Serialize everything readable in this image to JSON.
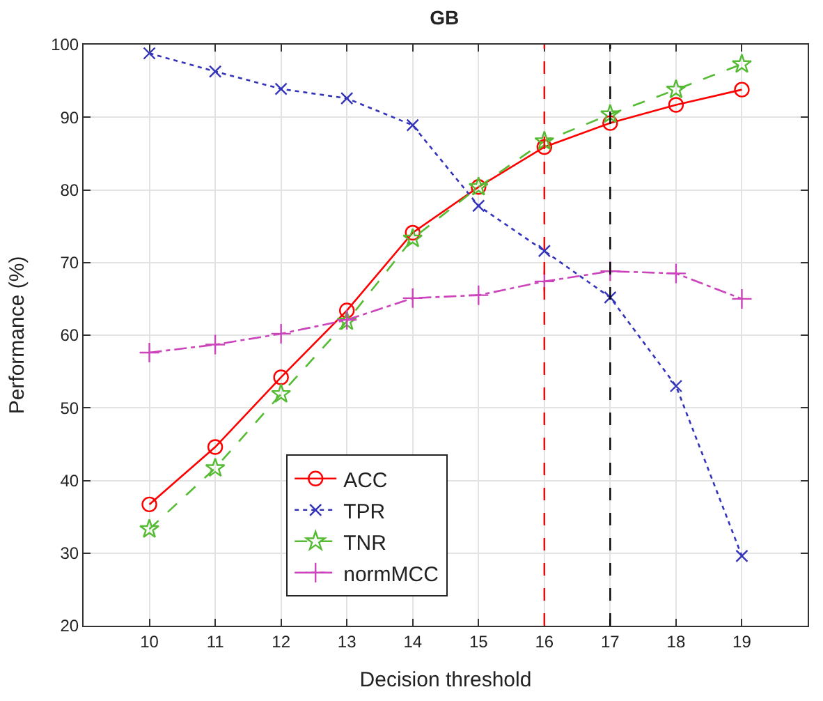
{
  "chart_data": {
    "type": "line",
    "title": "GB",
    "xlabel": "Decision threshold",
    "ylabel": "Performance (%)",
    "x": [
      10,
      11,
      12,
      13,
      14,
      15,
      16,
      17,
      18,
      19
    ],
    "series": [
      {
        "name": "ACC",
        "color": "#ff0000",
        "marker": "circle",
        "line_style": "solid",
        "values": [
          36.7,
          44.6,
          54.2,
          63.4,
          74.1,
          80.4,
          85.9,
          89.2,
          91.7,
          93.8
        ]
      },
      {
        "name": "TPR",
        "color": "#3333bb",
        "marker": "cross",
        "line_style": "dotted",
        "values": [
          98.8,
          96.3,
          93.9,
          92.6,
          88.9,
          77.8,
          71.6,
          65.2,
          53.0,
          29.6
        ]
      },
      {
        "name": "TNR",
        "color": "#55bb33",
        "marker": "star",
        "line_style": "dashed",
        "values": [
          33.3,
          41.7,
          51.9,
          61.9,
          73.3,
          80.4,
          86.7,
          90.4,
          93.8,
          97.3
        ]
      },
      {
        "name": "normMCC",
        "color": "#cc44bb",
        "marker": "plus",
        "line_style": "dashdot",
        "values": [
          57.6,
          58.7,
          60.2,
          62.1,
          65.1,
          65.5,
          67.4,
          68.8,
          68.5,
          65.0
        ]
      }
    ],
    "xlim": [
      9,
      20
    ],
    "xticks": [
      10,
      11,
      12,
      13,
      14,
      15,
      16,
      17,
      18,
      19
    ],
    "ylim": [
      20,
      100
    ],
    "yticks": [
      20,
      30,
      40,
      50,
      60,
      70,
      80,
      90,
      100
    ],
    "ref_lines": [
      {
        "axis": "x",
        "value": 16,
        "color": "#ff0000",
        "line_style": "dashed"
      },
      {
        "axis": "x",
        "value": 17,
        "color": "#000000",
        "line_style": "dashed"
      }
    ],
    "grid": true,
    "legend": "bottom left"
  }
}
